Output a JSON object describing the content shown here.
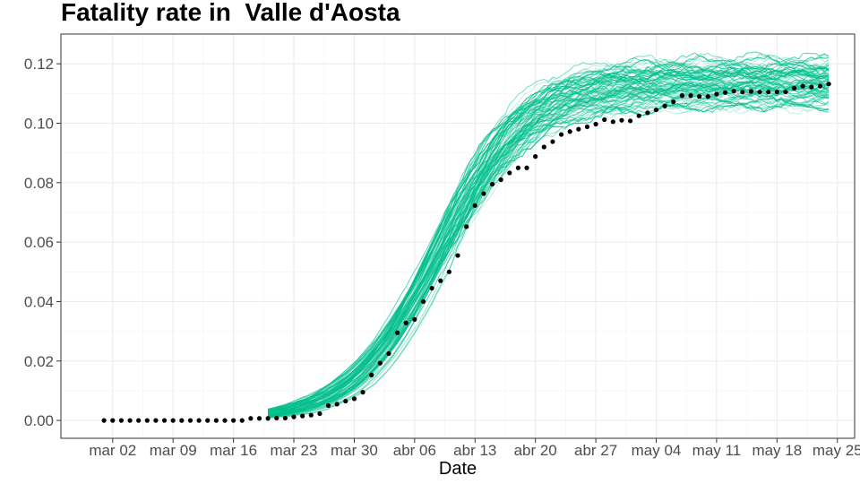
{
  "chart_data": {
    "type": "line",
    "title": "Fatality rate in  Valle d'Aosta",
    "xlabel": "Date",
    "ylabel": "",
    "x_ticks": [
      "mar 02",
      "mar 09",
      "mar 16",
      "mar 23",
      "mar 30",
      "abr 06",
      "abr 13",
      "abr 20",
      "abr 27",
      "may 04",
      "may 11",
      "may 18",
      "may 25"
    ],
    "y_ticks": [
      "0.00",
      "0.02",
      "0.04",
      "0.06",
      "0.08",
      "0.10",
      "0.12"
    ],
    "xlim": [
      "2020-02-25",
      "2020-05-27"
    ],
    "ylim": [
      -0.006,
      0.13
    ],
    "grid": true,
    "colors": {
      "observed": "#000000",
      "simulations": "#00BF8C",
      "grid": "#ebebeb",
      "panel_border": "#333333"
    },
    "series": [
      {
        "points": [
          [
            "2020-03-01",
            0.0
          ],
          [
            "2020-03-02",
            0.0
          ],
          [
            "2020-03-03",
            0.0
          ],
          [
            "2020-03-04",
            0.0
          ],
          [
            "2020-03-05",
            0.0
          ],
          [
            "2020-03-06",
            0.0
          ],
          [
            "2020-03-07",
            0.0
          ],
          [
            "2020-03-08",
            0.0
          ],
          [
            "2020-03-09",
            0.0
          ],
          [
            "2020-03-10",
            0.0
          ],
          [
            "2020-03-11",
            0.0
          ],
          [
            "2020-03-12",
            0.0
          ],
          [
            "2020-03-13",
            0.0
          ],
          [
            "2020-03-14",
            0.0
          ],
          [
            "2020-03-15",
            0.0
          ],
          [
            "2020-03-16",
            0.0
          ],
          [
            "2020-03-17",
            0.0
          ],
          [
            "2020-03-18",
            0.0007
          ],
          [
            "2020-03-19",
            0.0007
          ],
          [
            "2020-03-20",
            0.0007
          ],
          [
            "2020-03-21",
            0.0008
          ],
          [
            "2020-03-22",
            0.0008
          ],
          [
            "2020-03-23",
            0.0012
          ],
          [
            "2020-03-24",
            0.0015
          ],
          [
            "2020-03-25",
            0.0018
          ],
          [
            "2020-03-26",
            0.0023
          ],
          [
            "2020-03-27",
            0.005
          ],
          [
            "2020-03-28",
            0.0055
          ],
          [
            "2020-03-29",
            0.0065
          ],
          [
            "2020-03-30",
            0.0073
          ],
          [
            "2020-03-31",
            0.0095
          ],
          [
            "2020-04-01",
            0.0153
          ],
          [
            "2020-04-02",
            0.0193
          ],
          [
            "2020-04-03",
            0.0225
          ],
          [
            "2020-04-04",
            0.0295
          ],
          [
            "2020-04-05",
            0.0328
          ],
          [
            "2020-04-06",
            0.034
          ],
          [
            "2020-04-07",
            0.04
          ],
          [
            "2020-04-08",
            0.0445
          ],
          [
            "2020-04-09",
            0.047
          ],
          [
            "2020-04-10",
            0.05
          ],
          [
            "2020-04-11",
            0.0555
          ],
          [
            "2020-04-12",
            0.0652
          ],
          [
            "2020-04-13",
            0.0723
          ],
          [
            "2020-04-14",
            0.0763
          ],
          [
            "2020-04-15",
            0.0795
          ],
          [
            "2020-04-16",
            0.081
          ],
          [
            "2020-04-17",
            0.0833
          ],
          [
            "2020-04-18",
            0.085
          ],
          [
            "2020-04-19",
            0.085
          ],
          [
            "2020-04-20",
            0.0888
          ],
          [
            "2020-04-21",
            0.092
          ],
          [
            "2020-04-22",
            0.0938
          ],
          [
            "2020-04-23",
            0.0962
          ],
          [
            "2020-04-24",
            0.0972
          ],
          [
            "2020-04-25",
            0.098
          ],
          [
            "2020-04-26",
            0.0988
          ],
          [
            "2020-04-27",
            0.0997
          ],
          [
            "2020-04-28",
            0.1012
          ],
          [
            "2020-04-29",
            0.1005
          ],
          [
            "2020-04-30",
            0.101
          ],
          [
            "2020-05-01",
            0.1008
          ],
          [
            "2020-05-02",
            0.1025
          ],
          [
            "2020-05-03",
            0.1035
          ],
          [
            "2020-05-04",
            0.1045
          ],
          [
            "2020-05-05",
            0.1058
          ],
          [
            "2020-05-06",
            0.1072
          ],
          [
            "2020-05-07",
            0.1093
          ],
          [
            "2020-05-08",
            0.1093
          ],
          [
            "2020-05-09",
            0.109
          ],
          [
            "2020-05-10",
            0.109
          ],
          [
            "2020-05-11",
            0.1098
          ],
          [
            "2020-05-12",
            0.1103
          ],
          [
            "2020-05-13",
            0.1108
          ],
          [
            "2020-05-14",
            0.1105
          ],
          [
            "2020-05-15",
            0.1107
          ],
          [
            "2020-05-16",
            0.1105
          ],
          [
            "2020-05-17",
            0.1105
          ],
          [
            "2020-05-18",
            0.1105
          ],
          [
            "2020-05-19",
            0.1105
          ],
          [
            "2020-05-20",
            0.1118
          ],
          [
            "2020-05-21",
            0.1125
          ],
          [
            "2020-05-22",
            0.1122
          ],
          [
            "2020-05-23",
            0.1125
          ],
          [
            "2020-05-24",
            0.1132
          ]
        ]
      },
      {
        "ensemble": {
          "count": 80,
          "start": "2020-03-20",
          "end": "2020-05-24",
          "midpoint": "2020-04-09",
          "plateau_mean": 0.112,
          "plateau_spread": [
            0.103,
            0.124
          ]
        }
      }
    ]
  }
}
